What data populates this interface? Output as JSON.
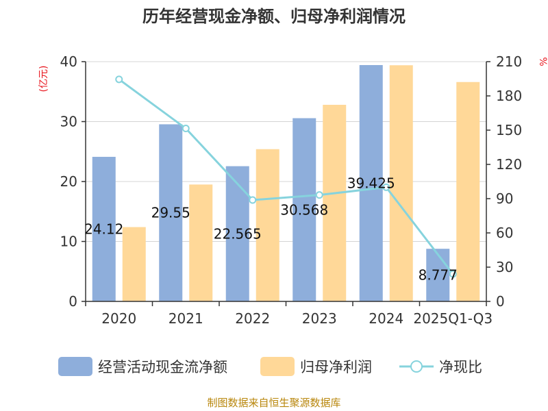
{
  "chart_data": {
    "type": "bar",
    "title": "历年经营现金净额、归母净利润情况",
    "categories": [
      "2020",
      "2021",
      "2022",
      "2023",
      "2024",
      "2025Q1-Q3"
    ],
    "left_axis": {
      "unit": "(亿元)",
      "ylim": [
        0,
        40
      ],
      "ticks": [
        "0",
        "10",
        "20",
        "30",
        "40"
      ]
    },
    "right_axis": {
      "unit": "%",
      "ylim": [
        0,
        210
      ],
      "ticks": [
        "0",
        "30",
        "60",
        "90",
        "120",
        "150",
        "180",
        "210"
      ]
    },
    "series": [
      {
        "name": "经营活动现金流净额",
        "kind": "bar",
        "axis": "left",
        "color": "#8eaedb",
        "values": [
          24.12,
          29.55,
          22.56,
          30.57,
          39.43,
          8.78
        ],
        "labels": [
          "24.12",
          "29.55",
          "22.565",
          "30.568",
          "39.425",
          "8.777"
        ]
      },
      {
        "name": "归母净利润",
        "kind": "bar",
        "axis": "left",
        "color": "#ffd898",
        "values": [
          12.4,
          19.5,
          25.4,
          32.8,
          39.4,
          36.6
        ]
      },
      {
        "name": "净现比",
        "kind": "line",
        "axis": "right",
        "color": "#86d3dd",
        "values": [
          194.5,
          151.5,
          88.8,
          93.2,
          100.0,
          24.0
        ]
      }
    ],
    "legend": [
      "经营活动现金流净额",
      "归母净利润",
      "净现比"
    ],
    "source": "制图数据来自恒生聚源数据库"
  }
}
